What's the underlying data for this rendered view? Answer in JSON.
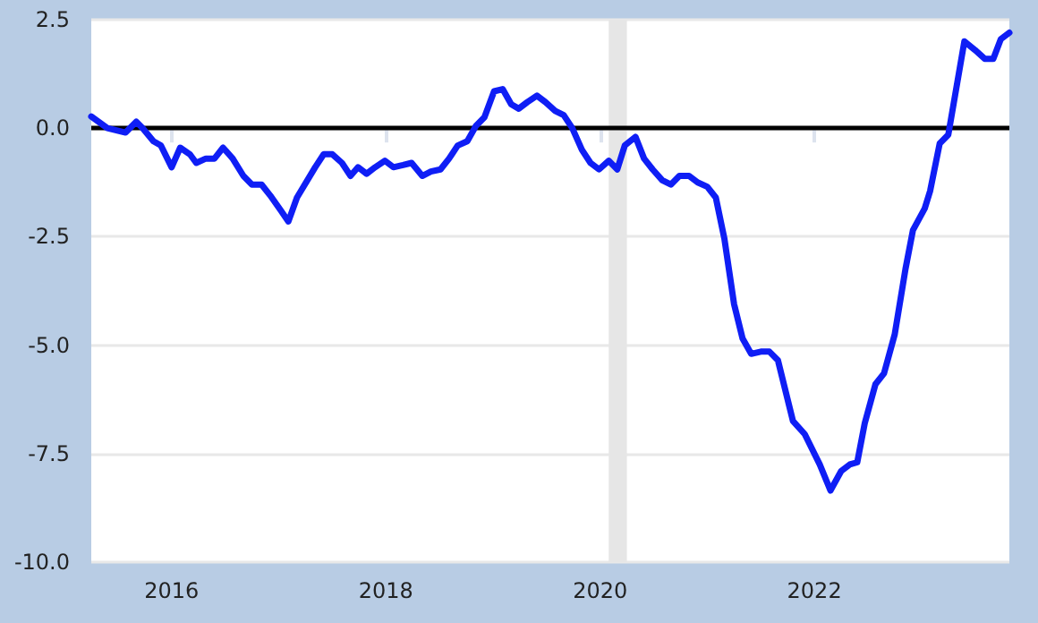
{
  "chart_data": {
    "type": "line",
    "x": [
      2015.25,
      2015.4,
      2015.57,
      2015.67,
      2015.73,
      2015.83,
      2015.9,
      2016.0,
      2016.08,
      2016.17,
      2016.23,
      2016.32,
      2016.4,
      2016.48,
      2016.57,
      2016.67,
      2016.75,
      2016.84,
      2016.92,
      2017.02,
      2017.09,
      2017.17,
      2017.34,
      2017.42,
      2017.5,
      2017.59,
      2017.67,
      2017.74,
      2017.82,
      2017.9,
      2017.99,
      2018.07,
      2018.16,
      2018.24,
      2018.34,
      2018.42,
      2018.51,
      2018.59,
      2018.67,
      2018.76,
      2018.84,
      2018.92,
      2019.01,
      2019.09,
      2019.17,
      2019.24,
      2019.32,
      2019.41,
      2019.49,
      2019.58,
      2019.66,
      2019.74,
      2019.83,
      2019.91,
      2019.99,
      2020.08,
      2020.16,
      2020.23,
      2020.33,
      2020.41,
      2020.49,
      2020.58,
      2020.66,
      2020.74,
      2020.83,
      2020.91,
      2021.0,
      2021.08,
      2021.16,
      2021.25,
      2021.33,
      2021.41,
      2021.5,
      2021.58,
      2021.66,
      2021.8,
      2021.91,
      2022.05,
      2022.15,
      2022.25,
      2022.33,
      2022.4,
      2022.47,
      2022.57,
      2022.65,
      2022.75,
      2022.85,
      2022.92,
      2023.03,
      2023.08,
      2023.17,
      2023.25,
      2023.4,
      2023.5,
      2023.59,
      2023.67,
      2023.74,
      2023.82
    ],
    "series": [
      {
        "color": "#0f1ef5",
        "values": [
          0.27,
          0.0,
          -0.1,
          0.15,
          0.0,
          -0.3,
          -0.4,
          -0.9,
          -0.45,
          -0.6,
          -0.8,
          -0.7,
          -0.7,
          -0.45,
          -0.7,
          -1.1,
          -1.3,
          -1.3,
          -1.55,
          -1.9,
          -2.15,
          -1.6,
          -0.9,
          -0.6,
          -0.6,
          -0.8,
          -1.1,
          -0.9,
          -1.05,
          -0.9,
          -0.75,
          -0.9,
          -0.85,
          -0.8,
          -1.1,
          -1.0,
          -0.95,
          -0.7,
          -0.4,
          -0.3,
          0.05,
          0.25,
          0.85,
          0.9,
          0.55,
          0.45,
          0.6,
          0.75,
          0.6,
          0.4,
          0.3,
          0.0,
          -0.5,
          -0.8,
          -0.95,
          -0.75,
          -0.95,
          -0.4,
          -0.2,
          -0.7,
          -0.95,
          -1.2,
          -1.3,
          -1.1,
          -1.1,
          -1.25,
          -1.35,
          -1.6,
          -2.55,
          -4.05,
          -4.85,
          -5.2,
          -5.15,
          -5.15,
          -5.35,
          -6.75,
          -7.05,
          -7.75,
          -8.35,
          -7.9,
          -7.75,
          -7.7,
          -6.8,
          -5.9,
          -5.65,
          -4.75,
          -3.25,
          -2.35,
          -1.85,
          -1.45,
          -0.35,
          -0.15,
          2.0,
          1.8,
          1.6,
          1.6,
          2.05,
          2.2
        ]
      }
    ],
    "xlim": [
      2015.25,
      2023.82
    ],
    "xticks": [
      2016,
      2018,
      2020,
      2022
    ],
    "ylim": [
      -10,
      2.5
    ],
    "yticks": [
      {
        "value": -10,
        "label": "-10.0"
      },
      {
        "value": -7.5,
        "label": "-7.5"
      },
      {
        "value": -5,
        "label": "-5.0"
      },
      {
        "value": -2.5,
        "label": "-2.5"
      },
      {
        "value": 0,
        "label": "0.0"
      },
      {
        "value": 2.5,
        "label": "2.5"
      }
    ],
    "ref_lines": [
      {
        "axis": "y",
        "value": 0,
        "color": "#000000"
      }
    ],
    "bands": [
      {
        "axis": "x",
        "from": 2020.08,
        "to": 2020.25,
        "color": "#e6e6e6"
      }
    ],
    "grid": "y",
    "marker": "none",
    "line_style": "solid"
  }
}
